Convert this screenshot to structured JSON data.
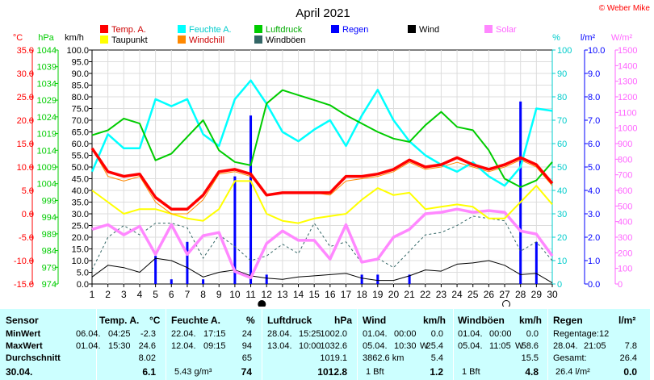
{
  "header": {
    "title": "April 2021",
    "credit": "© Weber Mike"
  },
  "chart_data": {
    "type": "line",
    "title": "April 2021",
    "x": [
      1,
      2,
      3,
      4,
      5,
      6,
      7,
      8,
      9,
      10,
      11,
      12,
      13,
      14,
      15,
      16,
      17,
      18,
      19,
      20,
      21,
      22,
      23,
      24,
      25,
      26,
      27,
      28,
      29,
      30
    ],
    "xlim": [
      1,
      30
    ],
    "axes": {
      "temp": {
        "label": "°C",
        "color": "#ff0000",
        "min": -15,
        "max": 35,
        "step": 5,
        "ticks": [
          "35.0",
          "30.0",
          "25.0",
          "20.0",
          "15.0",
          "10.0",
          "5.0",
          "0.0",
          "-5.0",
          "-10.0",
          "-15.0"
        ]
      },
      "pressure": {
        "label": "hPa",
        "color": "#00cc00",
        "min": 974,
        "max": 1044,
        "ticks": [
          "1044",
          "1039",
          "1034",
          "1029",
          "1024",
          "1019",
          "1014",
          "1009",
          "1004",
          "999",
          "994",
          "989",
          "984",
          "979",
          "974"
        ]
      },
      "wind": {
        "label": "km/h",
        "color": "#000000",
        "min": 0,
        "max": 100,
        "step": 5,
        "ticks": [
          "100.0",
          "95.0",
          "90.0",
          "85.0",
          "80.0",
          "75.0",
          "70.0",
          "65.0",
          "60.0",
          "55.0",
          "50.0",
          "45.0",
          "40.0",
          "35.0",
          "30.0",
          "25.0",
          "20.0",
          "15.0",
          "10.0",
          "5.0",
          "0.0"
        ]
      },
      "humidity": {
        "label": "%",
        "color": "#00cccc",
        "min": 0,
        "max": 100,
        "ticks": [
          "100",
          "90",
          "80",
          "70",
          "60",
          "50",
          "40",
          "30",
          "20",
          "10",
          "0"
        ]
      },
      "rain": {
        "label": "l/m²",
        "color": "#0000ff",
        "min": 0,
        "max": 10,
        "ticks": [
          "10.0",
          "9.0",
          "8.0",
          "7.0",
          "6.0",
          "5.0",
          "4.0",
          "3.0",
          "2.0",
          "1.0",
          "0.0"
        ]
      },
      "solar": {
        "label": "W/m²",
        "color": "#ff66ff",
        "min": 0,
        "max": 1500,
        "ticks": [
          "1500",
          "1400",
          "1300",
          "1200",
          "1100",
          "1000",
          "900",
          "800",
          "700",
          "600",
          "500",
          "400",
          "300",
          "200",
          "100",
          "0"
        ]
      }
    },
    "legend": [
      {
        "name": "Temp. A.",
        "color": "#ff0000"
      },
      {
        "name": "Feuchte A.",
        "color": "#00ffff"
      },
      {
        "name": "Luftdruck",
        "color": "#00cc00"
      },
      {
        "name": "Regen",
        "color": "#0000ff"
      },
      {
        "name": "Wind",
        "color": "#000000"
      },
      {
        "name": "Solar",
        "color": "#ff88ff"
      },
      {
        "name": "Taupunkt",
        "color": "#ffff00"
      },
      {
        "name": "Windchill",
        "color": "#ff8800"
      },
      {
        "name": "Windböen",
        "color": "#336666"
      }
    ],
    "series": [
      {
        "name": "Temp. A.",
        "axis": "temp",
        "color": "#ff0000",
        "width": 3.5,
        "values": [
          14.0,
          9.0,
          8.0,
          8.5,
          3.5,
          1.0,
          1.0,
          4.0,
          9.0,
          9.5,
          8.5,
          4.0,
          4.5,
          4.5,
          4.5,
          4.5,
          8.0,
          8.0,
          8.5,
          9.5,
          11.5,
          10.0,
          10.5,
          12.0,
          10.5,
          9.5,
          10.5,
          12.0,
          10.5,
          6.5
        ]
      },
      {
        "name": "Windchill",
        "axis": "temp",
        "color": "#ff8800",
        "width": 1,
        "values": [
          14.0,
          8.0,
          7.0,
          8.0,
          2.5,
          0.0,
          0.0,
          3.0,
          8.5,
          9.0,
          8.0,
          4.0,
          4.5,
          4.5,
          4.5,
          4.0,
          7.0,
          7.5,
          8.0,
          9.0,
          11.0,
          9.5,
          10.0,
          11.0,
          10.0,
          9.0,
          10.0,
          11.5,
          10.0,
          6.0
        ]
      },
      {
        "name": "Taupunkt",
        "axis": "temp",
        "color": "#ffff00",
        "width": 2,
        "values": [
          5.0,
          2.5,
          0.0,
          1.0,
          1.0,
          0.0,
          -1.0,
          -1.5,
          1.0,
          7.0,
          7.0,
          0.0,
          -1.5,
          -2.0,
          -1.0,
          -0.5,
          0.0,
          3.0,
          5.5,
          4.0,
          4.5,
          1.0,
          1.5,
          2.0,
          1.5,
          -1.0,
          -1.0,
          2.5,
          6.0,
          2.0
        ]
      },
      {
        "name": "Feuchte A.",
        "axis": "humidity",
        "color": "#00ffff",
        "width": 2.5,
        "values": [
          48,
          64,
          58,
          58,
          79,
          76,
          79,
          64,
          59,
          79,
          87,
          77,
          65,
          61,
          66,
          70,
          59,
          72,
          83,
          70,
          61,
          55,
          51,
          48,
          52,
          46,
          42,
          50,
          75,
          74
        ]
      },
      {
        "name": "Luftdruck",
        "axis": "pressure",
        "color": "#00cc00",
        "width": 2,
        "values": [
          1018.5,
          1020.0,
          1023.5,
          1022.0,
          1011.0,
          1013.0,
          1018.0,
          1023.0,
          1014.0,
          1010.5,
          1009.5,
          1028.0,
          1032.0,
          1030.5,
          1029.0,
          1027.5,
          1024.5,
          1022.0,
          1019.5,
          1017.5,
          1016.5,
          1021.5,
          1025.5,
          1021.0,
          1020.0,
          1014.0,
          1005.5,
          1003.0,
          1005.0,
          1010.5
        ]
      },
      {
        "name": "Solar",
        "axis": "solar",
        "color": "#ff88ff",
        "width": 3.5,
        "values": [
          350,
          380,
          315,
          370,
          190,
          380,
          190,
          310,
          330,
          80,
          40,
          260,
          340,
          280,
          280,
          160,
          380,
          140,
          160,
          300,
          350,
          450,
          460,
          480,
          460,
          470,
          460,
          340,
          320,
          180
        ]
      },
      {
        "name": "Wind",
        "axis": "wind",
        "color": "#000000",
        "width": 1,
        "values": [
          3.0,
          8.0,
          7.0,
          5.0,
          11.0,
          10.0,
          7.0,
          3.0,
          5.0,
          6.0,
          3.5,
          2.5,
          2.0,
          3.0,
          3.5,
          4.0,
          4.5,
          2.5,
          1.5,
          1.5,
          3.5,
          6.0,
          5.5,
          8.5,
          9.0,
          10.0,
          8.0,
          4.0,
          4.5,
          0.5
        ]
      },
      {
        "name": "Windböen",
        "axis": "wind",
        "color": "#336666",
        "width": 1,
        "dash": "3,3",
        "values": [
          6,
          20,
          25,
          21,
          26,
          26,
          24,
          11,
          21,
          16,
          10,
          12,
          17,
          13,
          26,
          16,
          18,
          9,
          11,
          7,
          14,
          21,
          22,
          25,
          29,
          28,
          27,
          14,
          18,
          10
        ]
      }
    ],
    "rain": {
      "name": "Regen",
      "axis": "rain",
      "color": "#0000ff",
      "bars": [
        {
          "x": 5,
          "value": 1.2
        },
        {
          "x": 6,
          "value": 0.2
        },
        {
          "x": 7,
          "value": 1.8
        },
        {
          "x": 8,
          "value": 0.2
        },
        {
          "x": 10,
          "value": 4.6
        },
        {
          "x": 11,
          "value": 7.2
        },
        {
          "x": 12,
          "value": 0.4
        },
        {
          "x": 18,
          "value": 0.4
        },
        {
          "x": 19,
          "value": 0.4
        },
        {
          "x": 21,
          "value": 0.4
        },
        {
          "x": 28,
          "value": 7.8
        },
        {
          "x": 29,
          "value": 1.8
        }
      ]
    },
    "moon": [
      {
        "x": 11.7,
        "phase": "new"
      },
      {
        "x": 27.1,
        "phase": "full"
      }
    ]
  },
  "table": {
    "sensor": {
      "label": "Sensor",
      "rows": [
        "MinWert",
        "MaxWert",
        "Durchschnitt"
      ],
      "date": "30.04."
    },
    "temp": {
      "title": "Temp. A.",
      "unit": "°C",
      "min_date": "06.04.",
      "min_time": "04:25",
      "min_val": "-2.3",
      "max_date": "01.04.",
      "max_time": "15:30",
      "max_val": "24.6",
      "avg": "8.02",
      "current": "6.1"
    },
    "feuchte": {
      "title": "Feuchte A.",
      "unit": "%",
      "min_date": "22.04.",
      "min_time": "17:15",
      "min_val": "24",
      "max_date": "12.04.",
      "max_time": "09:15",
      "max_val": "94",
      "avg": "65",
      "extra": "5.43 g/m³",
      "current": "74"
    },
    "luft": {
      "title": "Luftdruck",
      "unit": "hPa",
      "min_date": "28.04.",
      "min_time": "15:25",
      "min_val": "1002.0",
      "max_date": "13.04.",
      "max_time": "10:00",
      "max_val": "1032.6",
      "avg": "1019.1",
      "current": "1012.8"
    },
    "wind": {
      "title": "Wind",
      "unit": "km/h",
      "min_date": "01.04.",
      "min_time": "00:00",
      "min_val": "0.0",
      "max_date": "05.04.",
      "max_time": "10:30",
      "max_dir": "W",
      "max_val": "25.4",
      "dist": "3862.6 km",
      "avg": "5.4",
      "bft": "1 Bft",
      "current": "1.2"
    },
    "boeen": {
      "title": "Windböen",
      "unit": "km/h",
      "min_date": "01.04.",
      "min_time": "00:00",
      "min_val": "0.0",
      "max_date": "05.04.",
      "max_time": "11:05",
      "max_dir": "W",
      "max_val": "58.6",
      "avg": "15.5",
      "bft": "1 Bft",
      "current": "4.8"
    },
    "regen": {
      "title": "Regen",
      "unit": "l/m²",
      "tage_label": "Regentage:",
      "tage": "12",
      "max_date": "28.04.",
      "max_time": "21:05",
      "max_val": "7.8",
      "gesamt_label": "Gesamt:",
      "gesamt": "26.4",
      "current": "26.4 l/m²",
      "today": "0.0"
    }
  }
}
